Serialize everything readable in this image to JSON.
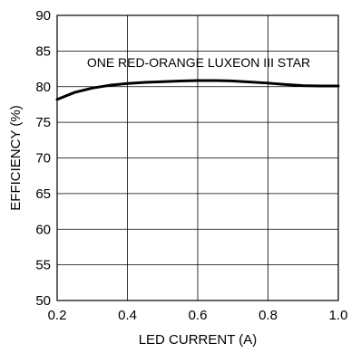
{
  "chart_data": {
    "type": "line",
    "xlabel": "LED CURRENT (A)",
    "ylabel": "EFFICIENCY (%)",
    "xlim": [
      0.2,
      1.0
    ],
    "ylim": [
      50,
      90
    ],
    "x_ticks": [
      0.2,
      0.4,
      0.6,
      0.8,
      1.0
    ],
    "x_tick_labels": [
      "0.2",
      "0.4",
      "0.6",
      "0.8",
      "1.0"
    ],
    "y_ticks": [
      50,
      55,
      60,
      65,
      70,
      75,
      80,
      85,
      90
    ],
    "y_tick_labels": [
      "50",
      "55",
      "60",
      "65",
      "70",
      "75",
      "80",
      "85",
      "90"
    ],
    "grid": true,
    "annotation": "ONE RED-ORANGE LUXEON III STAR",
    "series": [
      {
        "x": [
          0.2,
          0.25,
          0.3,
          0.35,
          0.4,
          0.45,
          0.5,
          0.55,
          0.6,
          0.65,
          0.7,
          0.75,
          0.8,
          0.85,
          0.9,
          0.95,
          1.0
        ],
        "y": [
          78.2,
          79.2,
          79.8,
          80.2,
          80.45,
          80.6,
          80.7,
          80.8,
          80.85,
          80.85,
          80.8,
          80.65,
          80.5,
          80.3,
          80.15,
          80.1,
          80.1
        ]
      }
    ]
  }
}
